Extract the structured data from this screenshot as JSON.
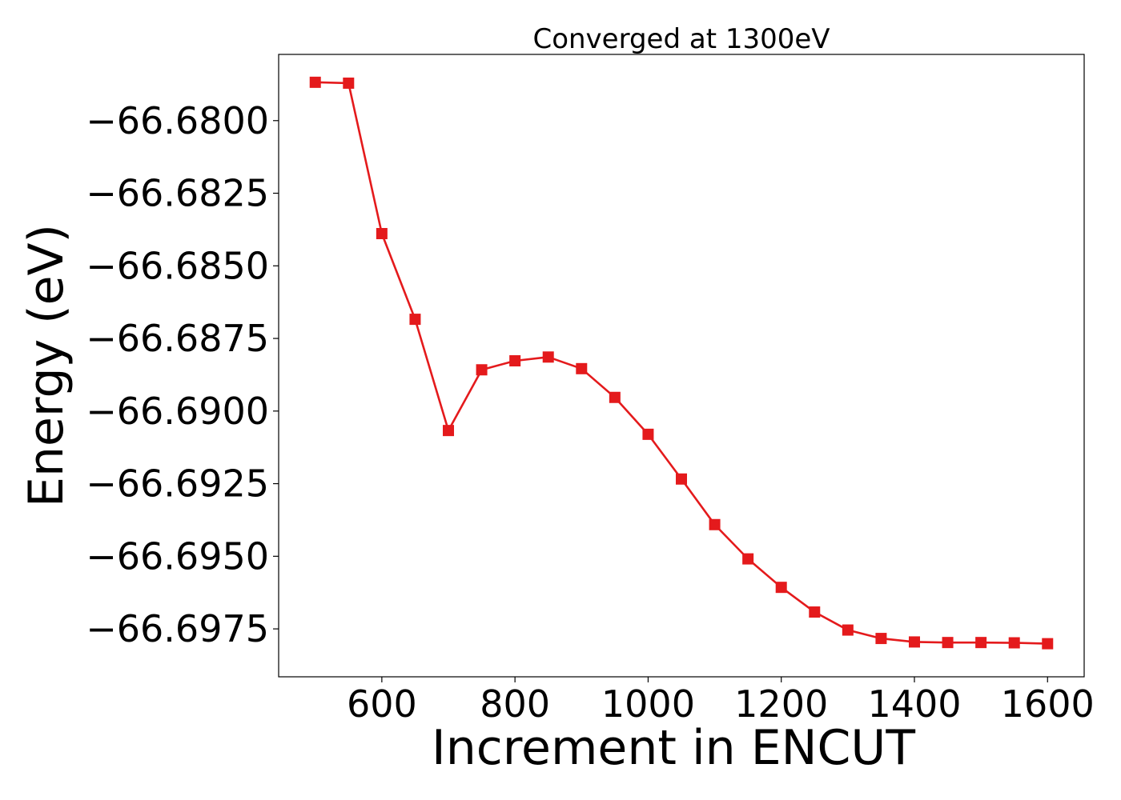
{
  "chart_data": {
    "type": "line",
    "title": "Converged at 1300eV",
    "xlabel": "Increment in ENCUT",
    "ylabel": "Energy (eV)",
    "xlim": [
      445,
      1655
    ],
    "ylim": [
      -66.69915,
      -66.67772
    ],
    "x_ticks": [
      600,
      800,
      1000,
      1200,
      1400,
      1600
    ],
    "x_tick_labels": [
      "600",
      "800",
      "1000",
      "1200",
      "1400",
      "1600"
    ],
    "y_ticks": [
      -66.68,
      -66.6825,
      -66.685,
      -66.6875,
      -66.69,
      -66.6925,
      -66.695,
      -66.6975
    ],
    "y_tick_labels": [
      "−66.6800",
      "−66.6825",
      "−66.6850",
      "−66.6875",
      "−66.6900",
      "−66.6925",
      "−66.6950",
      "−66.6975"
    ],
    "grid": false,
    "series": [
      {
        "color": "#e41a1c",
        "marker": "square",
        "x": [
          500,
          550,
          600,
          650,
          700,
          750,
          800,
          850,
          900,
          950,
          1000,
          1050,
          1100,
          1150,
          1200,
          1250,
          1300,
          1350,
          1400,
          1450,
          1500,
          1550,
          1600
        ],
        "y": [
          -66.67868,
          -66.67871,
          -66.68389,
          -66.68684,
          -66.69067,
          -66.68858,
          -66.68827,
          -66.68814,
          -66.68854,
          -66.68953,
          -66.6908,
          -66.69234,
          -66.69391,
          -66.69509,
          -66.69607,
          -66.69692,
          -66.69754,
          -66.69783,
          -66.69795,
          -66.69797,
          -66.69797,
          -66.69798,
          -66.69801
        ]
      }
    ]
  }
}
